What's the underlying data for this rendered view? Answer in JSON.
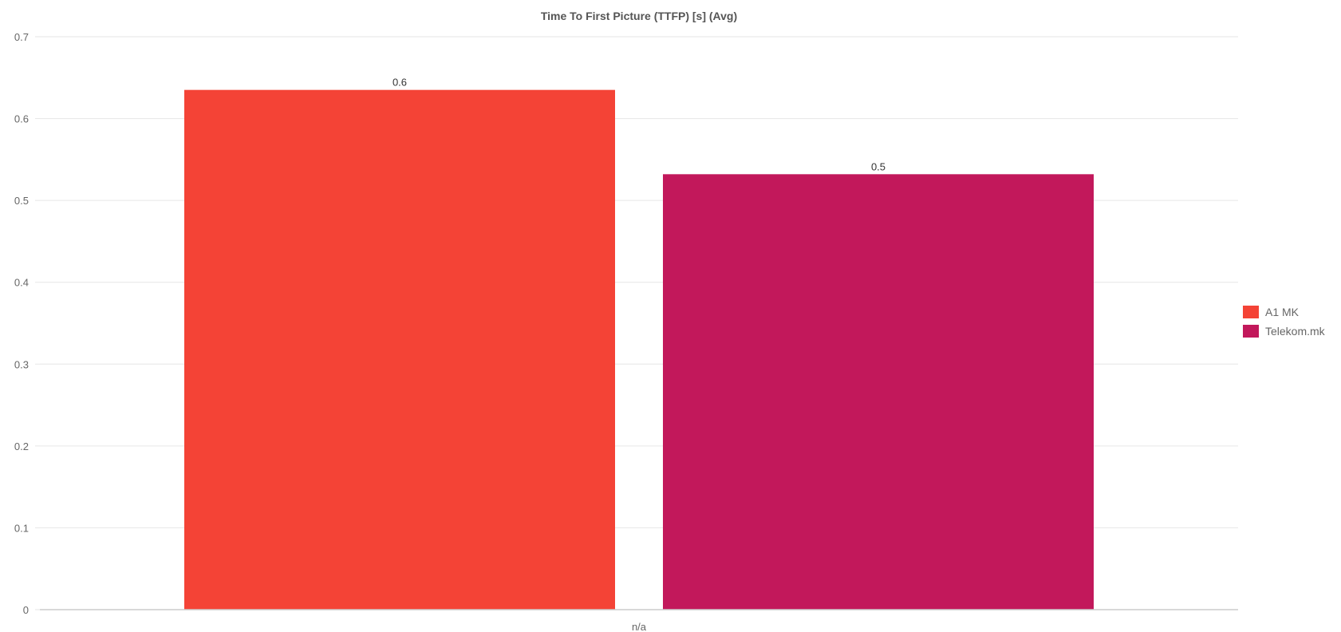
{
  "chart_data": {
    "type": "bar",
    "title": "Time To First Picture (TTFP) [s] (Avg)",
    "xlabel": "",
    "ylabel": "",
    "categories": [
      "n/a"
    ],
    "series": [
      {
        "name": "A1 MK",
        "values": [
          0.635
        ],
        "data_label": "0.6",
        "color": "#f44336"
      },
      {
        "name": "Telekom.mk",
        "values": [
          0.532
        ],
        "data_label": "0.5",
        "color": "#c2185b"
      }
    ],
    "ylim": [
      0,
      0.7
    ],
    "yticks": [
      "0",
      "0.1",
      "0.2",
      "0.3",
      "0.4",
      "0.5",
      "0.6",
      "0.7"
    ],
    "grid": true,
    "legend_position": "right"
  }
}
